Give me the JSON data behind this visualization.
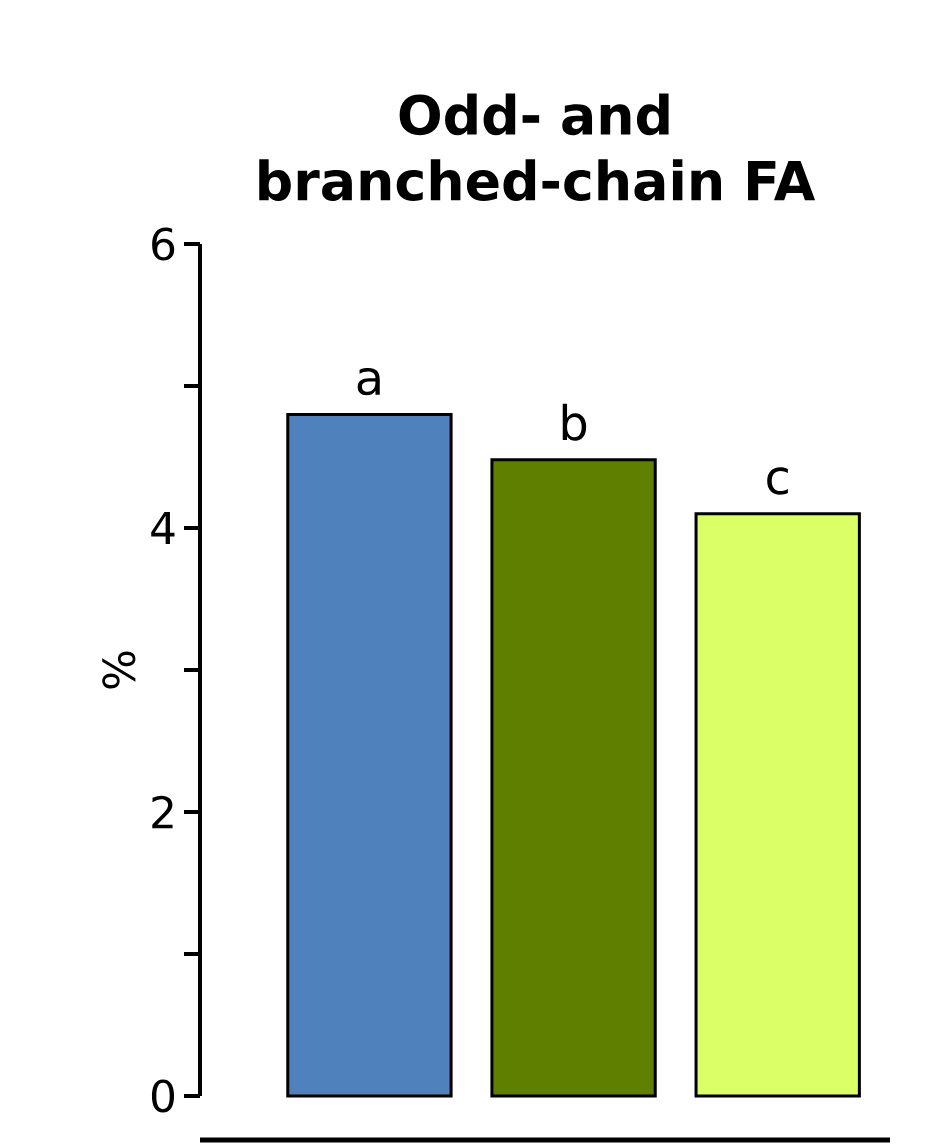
{
  "chart_data": {
    "type": "bar",
    "title": "Odd- and branched-chain FA",
    "ylabel": "%",
    "categories": [
      null,
      null,
      null
    ],
    "values": [
      4.8,
      4.48,
      4.1
    ],
    "colors": [
      "#4f81bd",
      "#5f7f00",
      "#dbff66"
    ],
    "value_labels": [
      "a",
      "b",
      "c"
    ],
    "ylim": [
      0,
      6
    ],
    "yticks": [
      0,
      2,
      4,
      6
    ],
    "grid": false
  }
}
